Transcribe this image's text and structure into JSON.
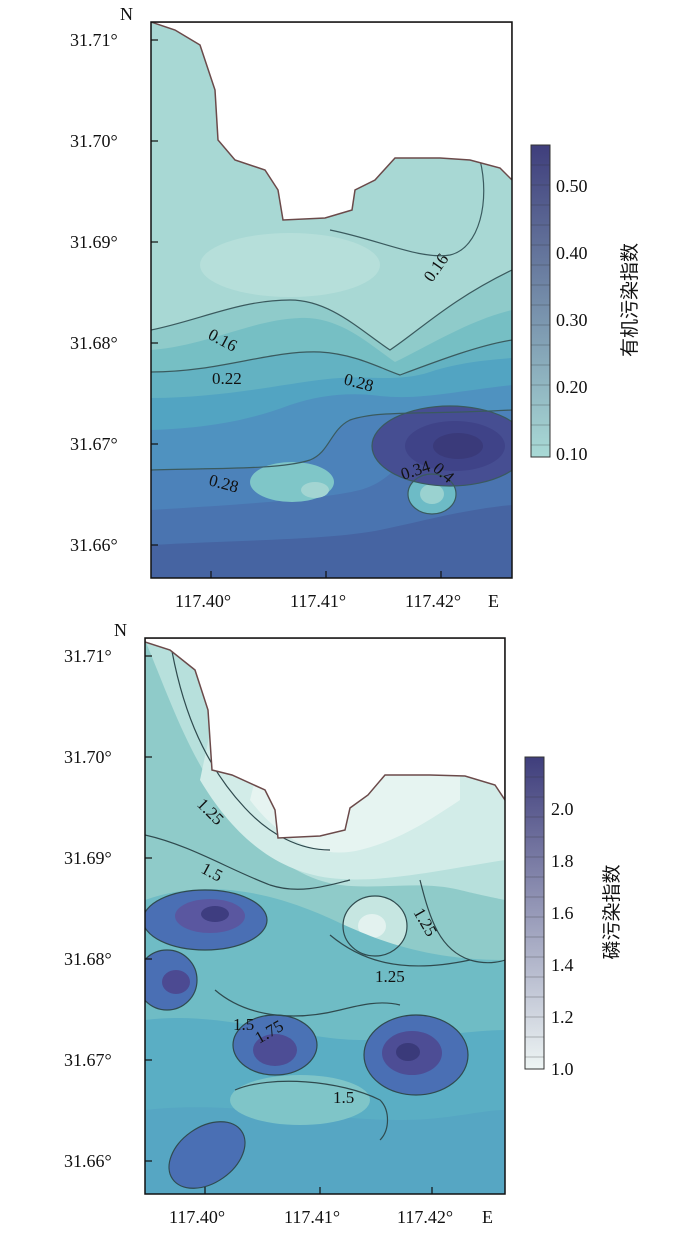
{
  "panels": [
    {
      "north_label": "N",
      "east_label": "E",
      "lat_ticks": [
        "31.71°",
        "31.70°",
        "31.69°",
        "31.68°",
        "31.67°",
        "31.66°"
      ],
      "lon_ticks": [
        "117.40°",
        "117.41°",
        "117.42°"
      ],
      "colorbar": {
        "title": "有机污染指数",
        "ticks": [
          "0.50",
          "0.40",
          "0.30",
          "0.20",
          "0.10"
        ],
        "colors": [
          "#a9dad6",
          "#3f3e7c"
        ]
      },
      "contour_labels": [
        "0.16",
        "0.16",
        "0.22",
        "0.28",
        "0.28",
        "0.4",
        "0.34"
      ]
    },
    {
      "north_label": "N",
      "east_label": "E",
      "lat_ticks": [
        "31.71°",
        "31.70°",
        "31.69°",
        "31.68°",
        "31.67°",
        "31.66°"
      ],
      "lon_ticks": [
        "117.40°",
        "117.41°",
        "117.42°"
      ],
      "colorbar": {
        "title": "磷污染指数",
        "ticks": [
          "2.0",
          "1.8",
          "1.6",
          "1.4",
          "1.2",
          "1.0"
        ],
        "colors": [
          "#eef5f4",
          "#3f3e7c"
        ]
      },
      "contour_labels": [
        "1.25",
        "1.5",
        "1.25",
        "1.25",
        "1.5",
        "1.75",
        "1.5"
      ]
    }
  ]
}
